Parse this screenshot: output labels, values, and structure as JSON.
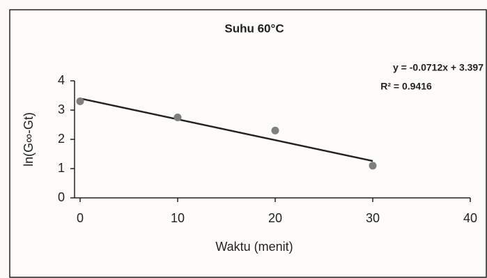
{
  "chart_data": {
    "type": "scatter",
    "title": "Suhu 60°C",
    "x_label": "Waktu (menit)",
    "y_label": "ln(G∞-Gt)",
    "x": [
      0,
      10,
      20,
      30
    ],
    "values": [
      3.3,
      2.75,
      2.3,
      1.1
    ],
    "color": "#7f7f7f",
    "trendline": {
      "x": [
        0,
        30
      ],
      "values": [
        3.397,
        1.261
      ],
      "color": "#222222"
    },
    "equation": "y = -0.0712x + 3.397",
    "r_squared": "R² = 0.9416",
    "xlim": [
      0,
      40
    ],
    "xticks": [
      0,
      10,
      20,
      30,
      40
    ],
    "ylim": [
      0,
      4
    ],
    "yticks": [
      0,
      1,
      2,
      3,
      4
    ]
  }
}
